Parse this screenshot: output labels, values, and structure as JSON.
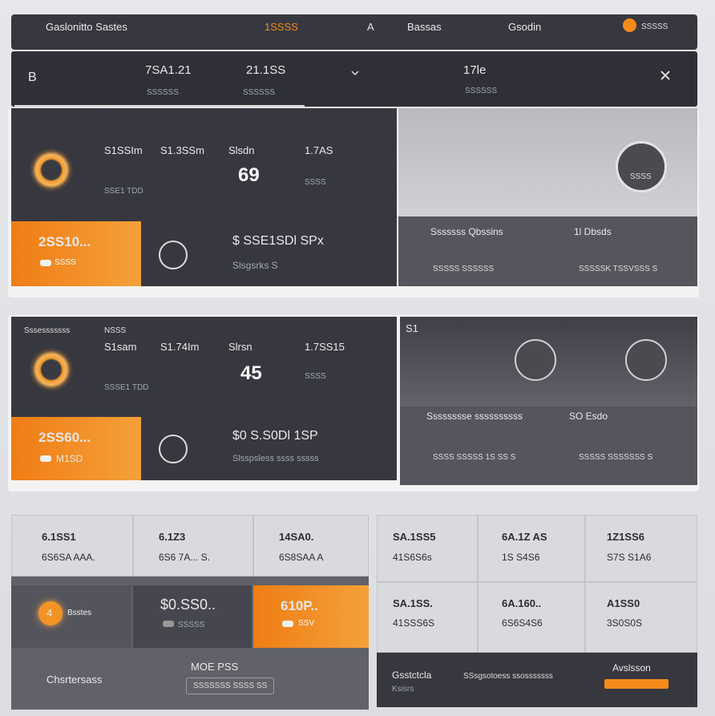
{
  "top_bar": {
    "brand": "Gaslonitto Sastes",
    "tab_1": "1SSSS",
    "tab_2": "A",
    "tab_3": "Bassas",
    "tab_4": "Gsodin",
    "status": "SSSSS"
  },
  "stats_bar": {
    "icon": "B",
    "stat_1": {
      "value": "7SA1.21",
      "label": "SSSSSS"
    },
    "stat_2": {
      "value": "21.1SS",
      "label": "SSSSSS"
    },
    "stat_3": {
      "value": "17le",
      "label": "SSSSSS"
    }
  },
  "panel_1": {
    "metrics": [
      "S1SSIm",
      "S1.3SSm",
      "Slsdn",
      "1.7AS"
    ],
    "sub": "SSE1 TDD",
    "big": "69",
    "small": "SSSS",
    "highlight": {
      "value": "2SS10...",
      "badge": "SSSS"
    },
    "summary": {
      "title": "$ SSE1SDl SPx",
      "subtitle": "Slsgsrks S"
    },
    "side": {
      "badge": "SSSS",
      "col_1": "Sssssss Qbssins",
      "col_2": "1l Dbsds",
      "row_1": "SSSSS SSSSSS",
      "row_2": "SSSSSK TSSVSSS S"
    }
  },
  "panel_2": {
    "header": "Sssesssssss",
    "tag": "NSSS",
    "metrics": [
      "S1sam",
      "S1.74Im",
      "Slrsn",
      "1.7SS15"
    ],
    "sub": "SSSE1 TDD",
    "big": "45",
    "small": "SSSS",
    "highlight": {
      "value": "2SS60...",
      "badge": "M1SD"
    },
    "summary": {
      "title": "$0 S.S0Dl 1SP",
      "subtitle": "Slsspsless ssss sssss"
    },
    "side": {
      "badge": "S1",
      "col_1": "Sssssssse ssssssssss",
      "col_2": "SO Esdo",
      "row_1": "SSSS SSSSS 1S SS S",
      "row_2": "SSSSS SSSSSSS S"
    }
  },
  "grid_left": {
    "cells": [
      {
        "value": "6.1SS1",
        "label": "6S6SA AAA."
      },
      {
        "value": "6.1Z3",
        "label": "6S6 7A... S."
      },
      {
        "value": "14SA0.",
        "label": "6S8SAA A"
      }
    ],
    "card": {
      "badge": "4",
      "label": "Bsstes"
    },
    "dark_card": {
      "value": "$0.SS0..",
      "label": "SSSSS"
    },
    "orange_card": {
      "value": "610P..",
      "label": "SSV"
    },
    "footer": {
      "label": "Chsrtersass",
      "title": "MOE PSS",
      "button": "SSSSSSS SSSS SS"
    }
  },
  "grid_right": {
    "cells": [
      {
        "value": "SA.1SS5",
        "label": "41S6S6s"
      },
      {
        "value": "6A.1Z AS",
        "label": "1S S4S6"
      },
      {
        "value": "1Z1SS6",
        "label": "S7S S1A6"
      },
      {
        "value": "SA.1SS.",
        "label": "41SSS6S"
      },
      {
        "value": "6A.160..",
        "label": "6S6S4S6"
      },
      {
        "value": "A1SS0",
        "label": "3S0S0S"
      }
    ],
    "footer": {
      "label": "Gsstctcla",
      "sub": "Ksisrs",
      "text": "SSsgsotoess ssosssssss",
      "action": "Avslsson"
    }
  }
}
